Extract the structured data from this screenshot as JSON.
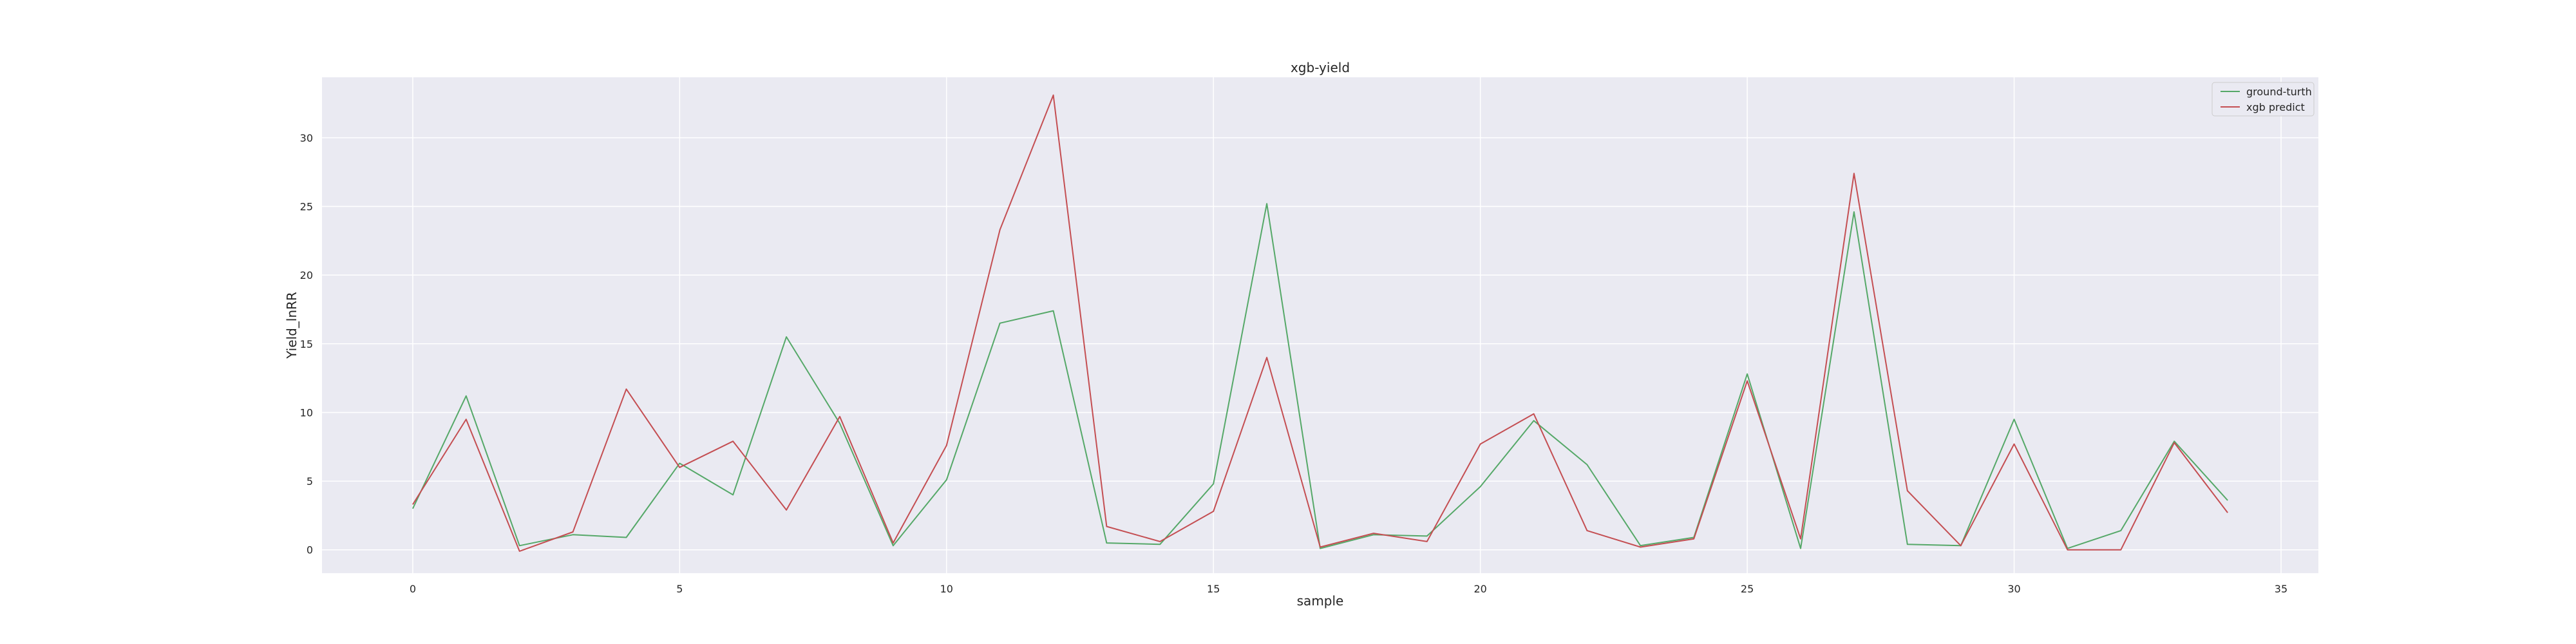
{
  "chart_data": {
    "type": "line",
    "title": "xgb-yield",
    "xlabel": "sample",
    "ylabel": "Yield_lnRR",
    "xlim": [
      -1.7,
      35.7
    ],
    "ylim": [
      -1.7,
      34.4
    ],
    "xticks": [
      0,
      5,
      10,
      15,
      20,
      25,
      30,
      35
    ],
    "yticks": [
      0,
      5,
      10,
      15,
      20,
      25,
      30
    ],
    "grid": true,
    "legend_position": "top-right",
    "x": [
      0,
      1,
      2,
      3,
      4,
      5,
      6,
      7,
      8,
      9,
      10,
      11,
      12,
      13,
      14,
      15,
      16,
      17,
      18,
      19,
      20,
      21,
      22,
      23,
      24,
      25,
      26,
      27,
      28,
      29,
      30,
      31,
      32,
      33,
      34
    ],
    "series": [
      {
        "name": "ground-turth",
        "color": "#55a868",
        "values": [
          3.0,
          11.2,
          0.3,
          1.1,
          0.9,
          6.3,
          4.0,
          15.5,
          9.2,
          0.3,
          5.1,
          16.5,
          17.4,
          0.5,
          0.4,
          4.8,
          25.2,
          0.1,
          1.1,
          1.0,
          4.6,
          9.4,
          6.2,
          0.3,
          0.9,
          12.8,
          0.1,
          24.6,
          0.4,
          0.3,
          9.5,
          0.1,
          1.4,
          7.9,
          3.6
        ]
      },
      {
        "name": "xgb predict",
        "color": "#c44e52",
        "values": [
          3.3,
          9.5,
          -0.1,
          1.3,
          11.7,
          6.0,
          7.9,
          2.9,
          9.7,
          0.5,
          7.6,
          23.3,
          33.1,
          1.7,
          0.6,
          2.8,
          14.0,
          0.2,
          1.2,
          0.6,
          7.7,
          9.9,
          1.4,
          0.2,
          0.8,
          12.3,
          0.8,
          27.4,
          4.3,
          0.3,
          7.7,
          0.0,
          0.0,
          7.8,
          2.7
        ]
      }
    ]
  }
}
